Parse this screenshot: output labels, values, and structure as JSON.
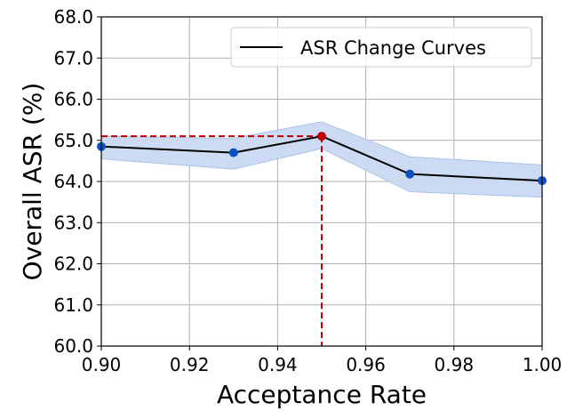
{
  "chart_data": {
    "type": "line",
    "xlabel": "Acceptance Rate",
    "ylabel": "Overall ASR (%)",
    "xlim": [
      0.9,
      1.0
    ],
    "ylim": [
      60.0,
      68.0
    ],
    "xticks": [
      "0.90",
      "0.92",
      "0.94",
      "0.96",
      "0.98",
      "1.00"
    ],
    "yticks": [
      "60.0",
      "61.0",
      "62.0",
      "63.0",
      "64.0",
      "65.0",
      "66.0",
      "67.0",
      "68.0"
    ],
    "grid": true,
    "legend_position": "top-right",
    "series": [
      {
        "name": "ASR Change Curves",
        "x": [
          0.9,
          0.93,
          0.95,
          0.97,
          1.0
        ],
        "y": [
          64.85,
          64.7,
          65.1,
          64.18,
          64.02
        ],
        "band_lower": [
          64.55,
          64.3,
          64.8,
          63.75,
          63.62
        ],
        "band_upper": [
          65.1,
          65.05,
          65.45,
          64.6,
          64.4
        ],
        "line_color": "#000000",
        "marker_color": "#0a52c4",
        "band_color": "#c9d9f2"
      }
    ],
    "highlight": {
      "x": 0.95,
      "y": 65.1,
      "color": "#c00000"
    }
  }
}
